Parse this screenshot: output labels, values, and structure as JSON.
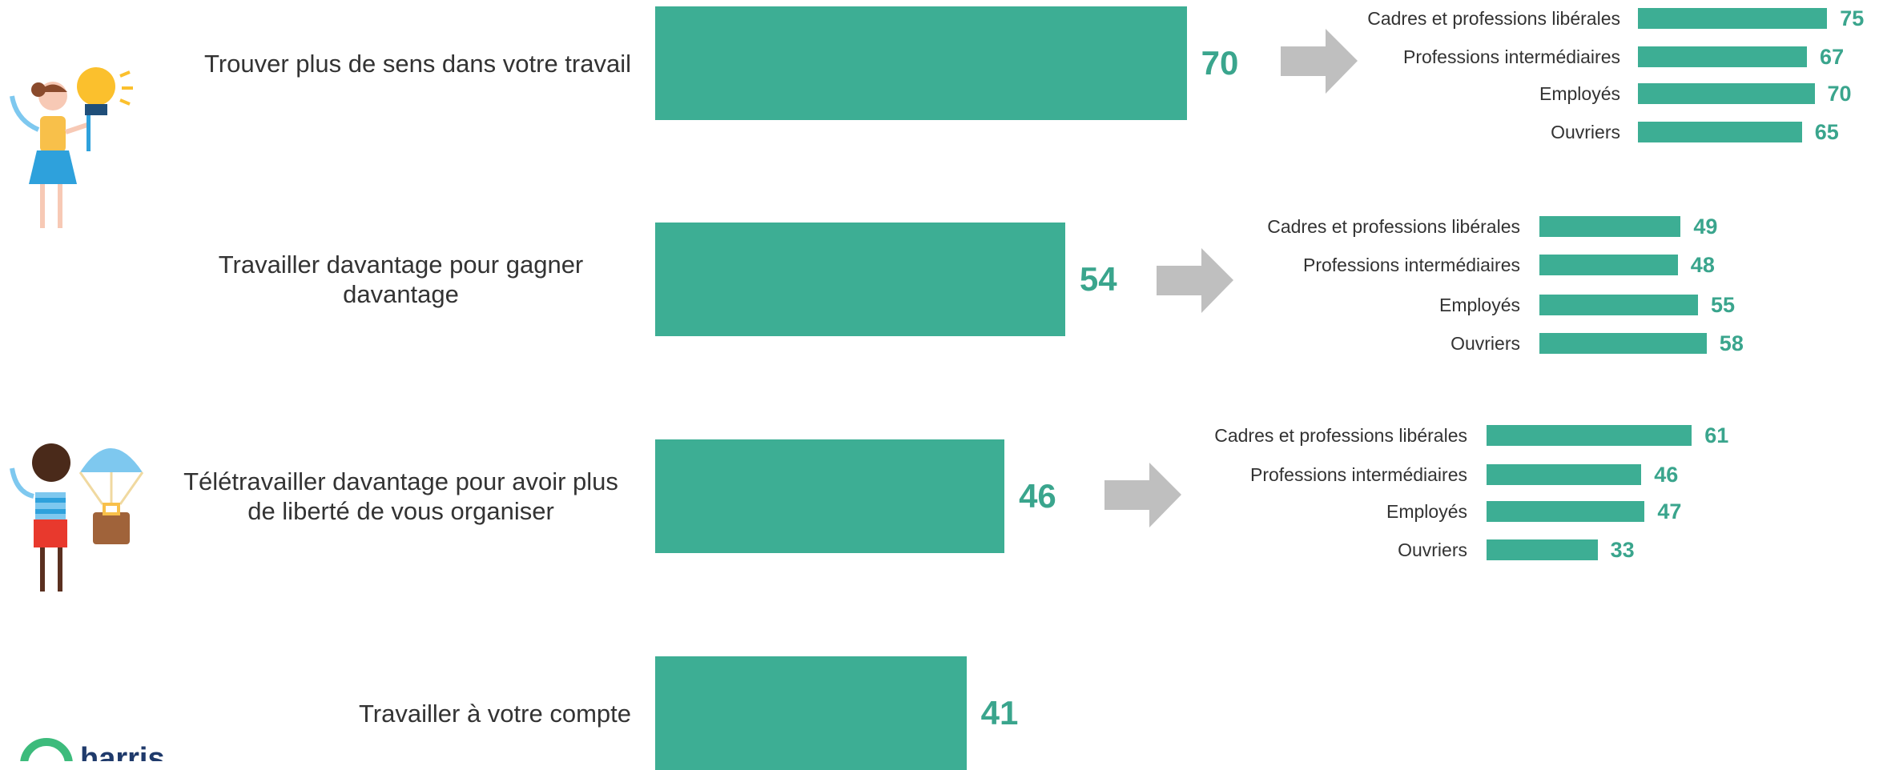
{
  "chart_data": [
    {
      "type": "bar",
      "categories": [
        "Trouver plus de sens dans votre travail",
        "Travailler davantage pour gagner davantage",
        "Télétravailler davantage pour avoir plus de liberté de vous organiser",
        "Travailler à votre compte"
      ],
      "values": [
        70,
        54,
        46,
        41
      ],
      "color": "#3dae94"
    },
    {
      "type": "bar",
      "categories": [
        "Cadres et professions libérales",
        "Professions intermédiaires",
        "Employés",
        "Ouvriers"
      ],
      "values": [
        75,
        67,
        70,
        65
      ],
      "color": "#3dae94"
    },
    {
      "type": "bar",
      "categories": [
        "Cadres et professions libérales",
        "Professions intermédiaires",
        "Employés",
        "Ouvriers"
      ],
      "values": [
        49,
        48,
        55,
        58
      ],
      "color": "#3dae94"
    },
    {
      "type": "bar",
      "categories": [
        "Cadres et professions libérales",
        "Professions intermédiaires",
        "Employés",
        "Ouvriers"
      ],
      "values": [
        61,
        46,
        47,
        33
      ],
      "color": "#3dae94"
    }
  ],
  "logo": "harris"
}
